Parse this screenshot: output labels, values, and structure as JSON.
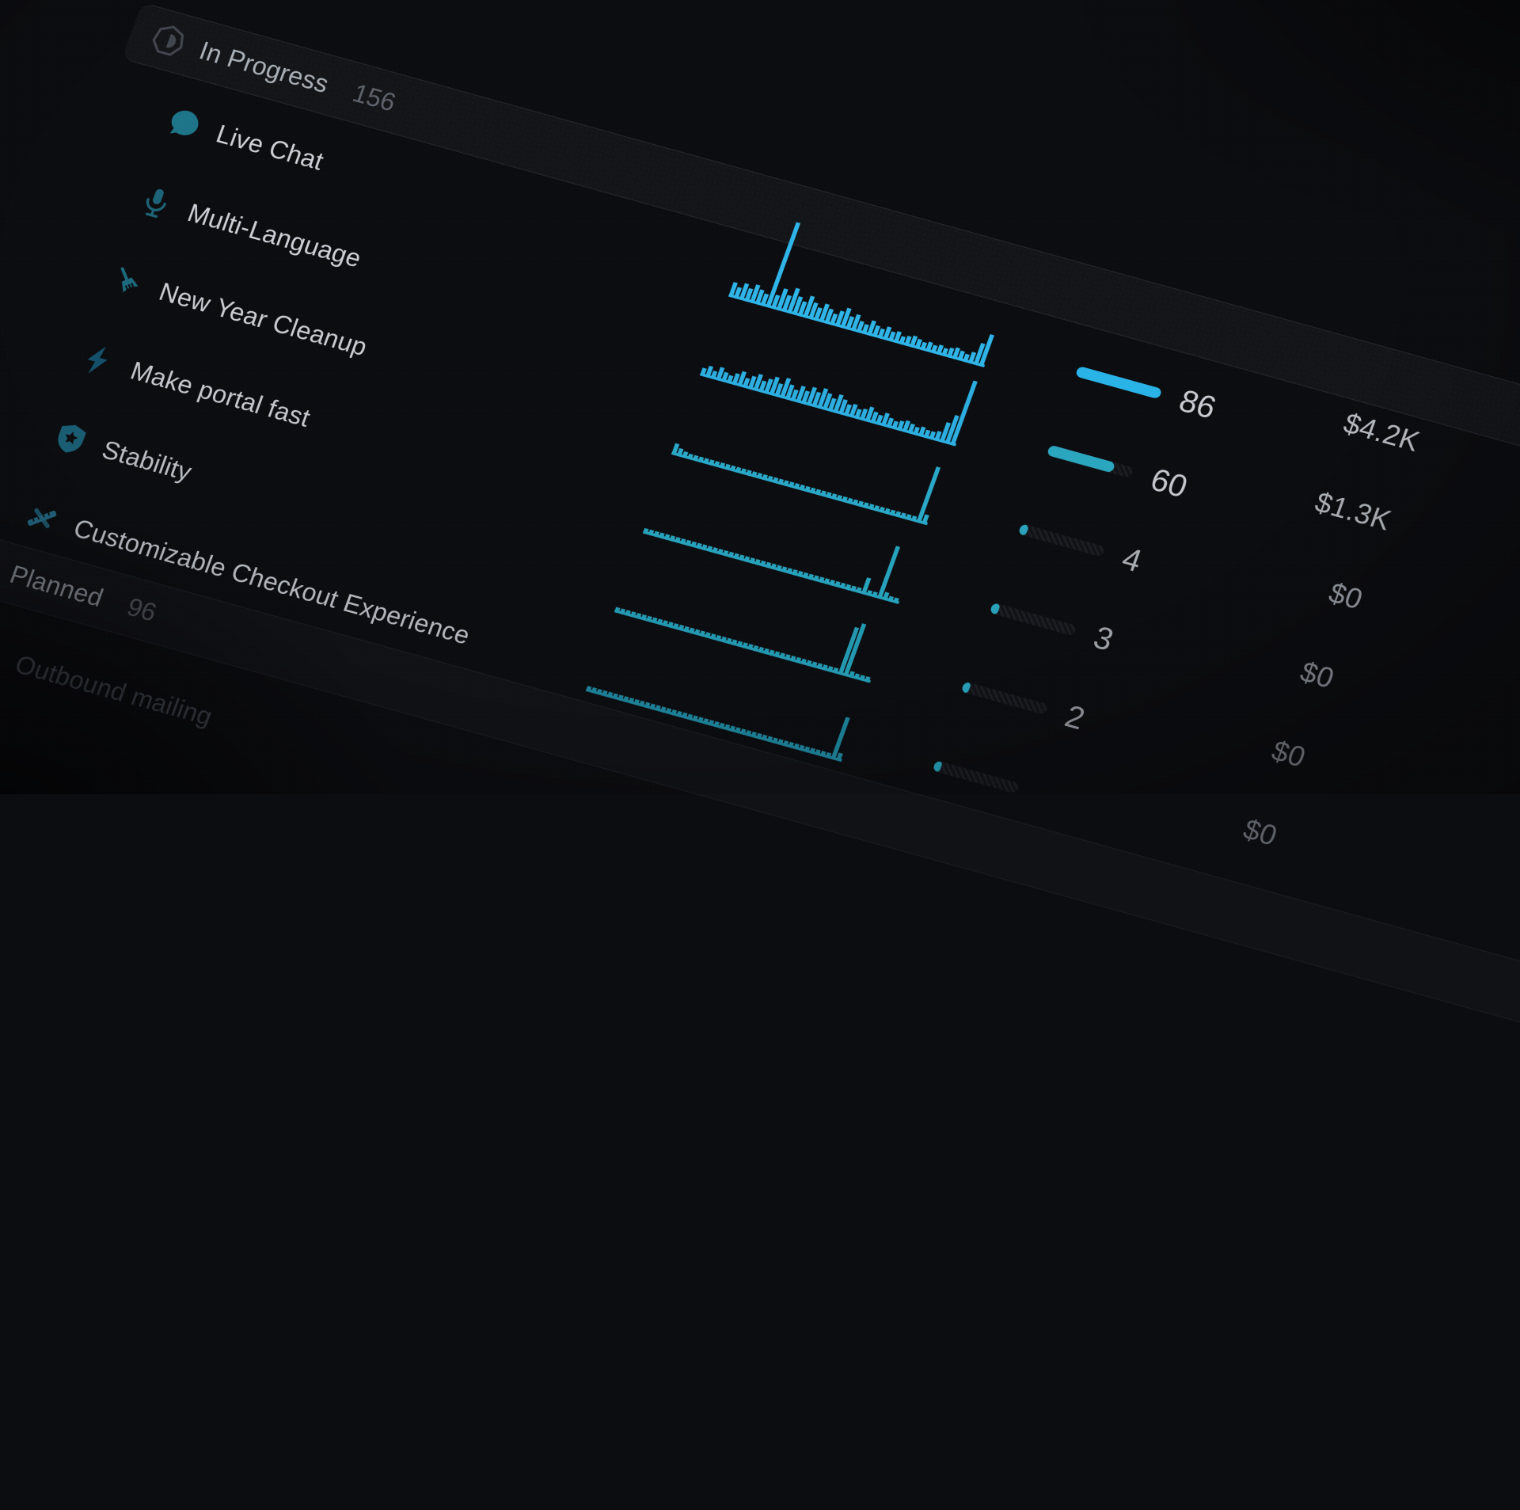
{
  "theme": {
    "page_bg": "#0c0d10",
    "band_bg": "#141519",
    "band_border": "#26282e",
    "bar_track": "#1b1d23",
    "accent_blue": "#29b3e6",
    "accent_teal": "#2ba6bf"
  },
  "sections": {
    "in_progress": {
      "label": "In Progress",
      "count": "156",
      "icon": "in-progress-status-icon"
    },
    "planned": {
      "label": "Planned",
      "count": "96",
      "icon": "planned-status-icon"
    }
  },
  "rows": [
    {
      "name": "Live Chat",
      "icon": "chat-bubble-icon",
      "icon_color": "#1e7488",
      "name_color": "#cdd1d7",
      "spark_color": "#2fb5e8",
      "bar_color": "#29b3e6",
      "bar_pct": 100,
      "count": "86",
      "count_color": "#c9ccd2",
      "revenue": "$4.2K",
      "revenue_color": "#b6bac1",
      "sparkline": [
        14,
        10,
        16,
        12,
        18,
        14,
        11,
        96,
        13,
        22,
        16,
        26,
        18,
        14,
        22,
        16,
        12,
        18,
        14,
        10,
        15,
        20,
        12,
        16,
        10,
        8,
        14,
        10,
        8,
        12,
        8,
        10,
        6,
        8,
        10,
        8,
        6,
        8,
        6,
        8,
        6,
        8,
        10,
        8,
        6,
        10,
        22,
        34
      ]
    },
    {
      "name": "Multi-Language",
      "icon": "microphone-icon",
      "icon_color": "#1d6478",
      "name_color": "#cdd1d7",
      "spark_color": "#2cafe0",
      "bar_color": "#2ba6bf",
      "bar_pct": 78,
      "count": "60",
      "count_color": "#c3c7cd",
      "revenue": "$1.3K",
      "revenue_color": "#abafb6",
      "sparkline": [
        6,
        10,
        6,
        12,
        8,
        6,
        10,
        14,
        8,
        12,
        16,
        10,
        14,
        18,
        12,
        20,
        14,
        10,
        16,
        12,
        18,
        14,
        20,
        16,
        12,
        18,
        14,
        10,
        12,
        8,
        10,
        14,
        10,
        8,
        12,
        8,
        6,
        8,
        10,
        8,
        6,
        8,
        6,
        6,
        8,
        20,
        30,
        72
      ]
    },
    {
      "name": "New Year Cleanup",
      "icon": "broom-icon",
      "icon_color": "#1d6a7e",
      "name_color": "#c9cdd3",
      "spark_color": "#2aa8c8",
      "bar_color": "#2aa2bb",
      "bar_pct": 9,
      "count": "4",
      "count_color": "#a8acb3",
      "revenue": "$0",
      "revenue_color": "#92969e",
      "sparkline": [
        10,
        6,
        4,
        3,
        3,
        3,
        3,
        3,
        3,
        3,
        3,
        3,
        3,
        3,
        3,
        3,
        3,
        3,
        3,
        3,
        3,
        3,
        3,
        3,
        3,
        3,
        3,
        3,
        3,
        3,
        3,
        3,
        3,
        3,
        3,
        3,
        3,
        3,
        3,
        3,
        3,
        3,
        3,
        3,
        3,
        3,
        62,
        8
      ]
    },
    {
      "name": "Make portal fast",
      "icon": "lightning-icon",
      "icon_color": "#15506a",
      "name_color": "#c4c8ce",
      "spark_color": "#27a2bd",
      "bar_color": "#29a0b9",
      "bar_pct": 9,
      "count": "3",
      "count_color": "#9b9fa6",
      "revenue": "$0",
      "revenue_color": "#82868e",
      "sparkline": [
        3,
        3,
        3,
        3,
        3,
        3,
        3,
        3,
        3,
        3,
        3,
        3,
        3,
        3,
        3,
        3,
        3,
        3,
        3,
        3,
        3,
        3,
        3,
        3,
        3,
        3,
        3,
        3,
        3,
        3,
        3,
        3,
        3,
        3,
        3,
        3,
        3,
        3,
        3,
        3,
        3,
        16,
        3,
        3,
        58,
        6,
        3,
        3
      ]
    },
    {
      "name": "Stability",
      "icon": "shield-icon",
      "icon_color": "#1a5d72",
      "name_color": "#b9bdc4",
      "spark_color": "#2398b1",
      "bar_color": "#279cb4",
      "bar_pct": 8,
      "count": "2",
      "count_color": "#8d9198",
      "revenue": "$0",
      "revenue_color": "#70747c",
      "sparkline": [
        3,
        3,
        3,
        3,
        3,
        3,
        3,
        3,
        3,
        3,
        3,
        3,
        3,
        3,
        3,
        3,
        3,
        3,
        3,
        3,
        3,
        3,
        3,
        3,
        3,
        3,
        3,
        3,
        3,
        3,
        3,
        3,
        3,
        3,
        3,
        3,
        3,
        3,
        3,
        3,
        3,
        3,
        52,
        58,
        4,
        3,
        3,
        3
      ]
    },
    {
      "name": "Customizable Checkout Experience",
      "icon": "ruler-pencil-icon",
      "icon_color": "#216179",
      "name_color": "#b2b6bd",
      "spark_color": "#1d7f95",
      "bar_color": "#2597ae",
      "bar_pct": 8,
      "count": null,
      "count_color": "#6f737b",
      "revenue": "$0",
      "revenue_color": "#5c6068",
      "sparkline": [
        3,
        3,
        3,
        3,
        3,
        3,
        3,
        3,
        3,
        3,
        3,
        3,
        3,
        3,
        3,
        3,
        3,
        3,
        3,
        3,
        3,
        3,
        3,
        3,
        3,
        3,
        3,
        3,
        3,
        3,
        3,
        3,
        3,
        3,
        3,
        3,
        3,
        3,
        3,
        3,
        3,
        3,
        3,
        3,
        3,
        3,
        46,
        6
      ]
    }
  ],
  "planned_rows": [
    {
      "name": "Outbound mailing",
      "name_color": "#3d414a"
    }
  ]
}
